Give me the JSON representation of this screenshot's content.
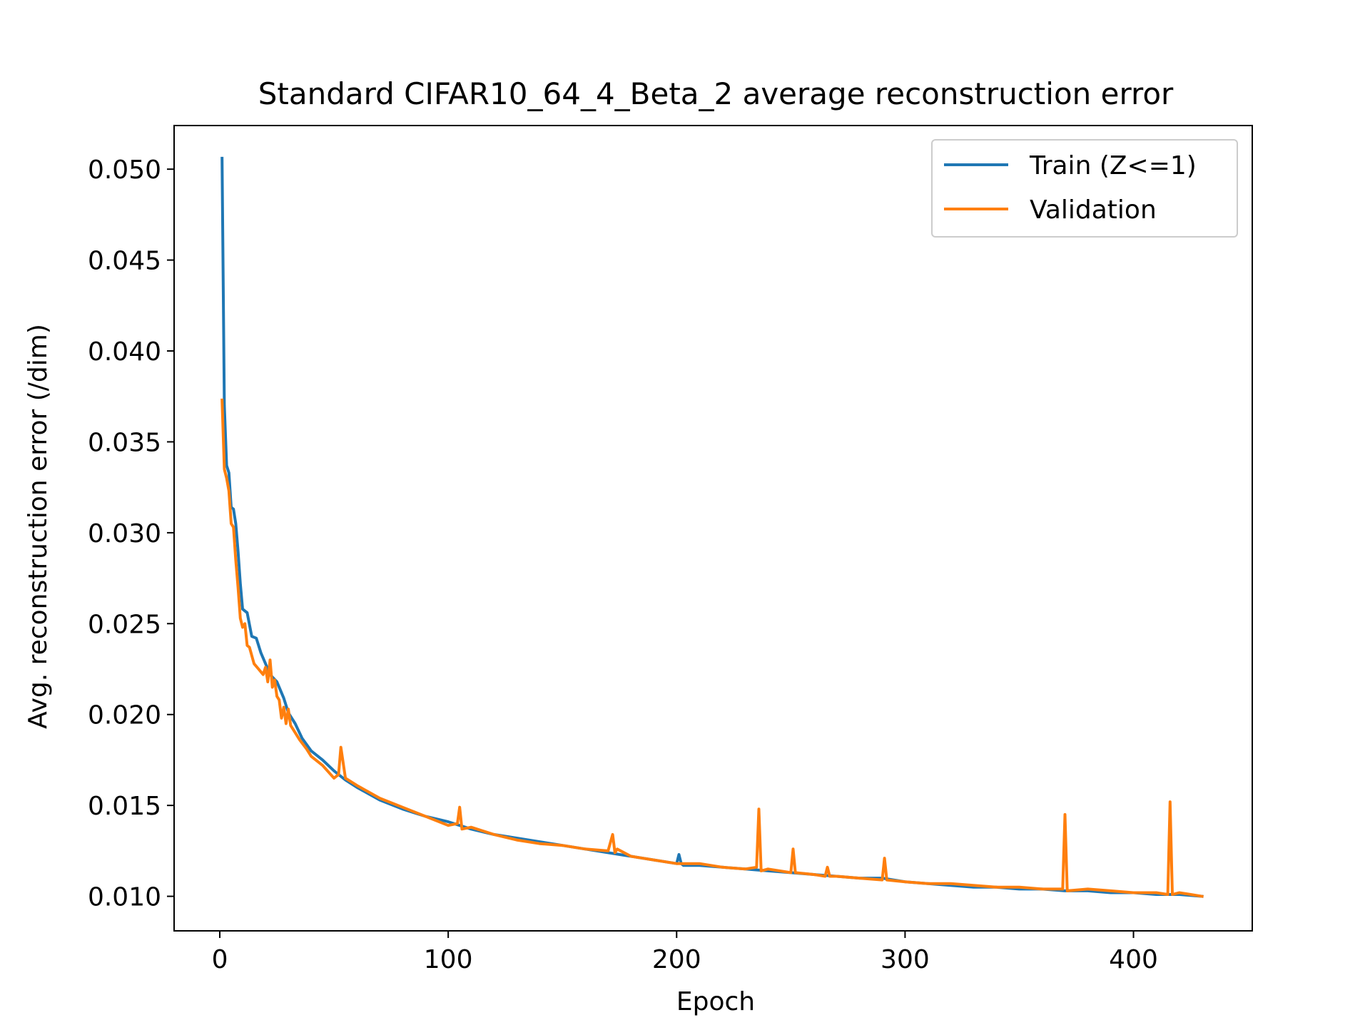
{
  "chart_data": {
    "type": "line",
    "title": "Standard CIFAR10_64_4_Beta_2 average reconstruction error",
    "xlabel": "Epoch",
    "ylabel": "Avg. reconstruction error (/dim)",
    "xlim": [
      -20,
      452
    ],
    "ylim": [
      0.0081,
      0.0524
    ],
    "xticks": [
      0,
      100,
      200,
      300,
      400
    ],
    "xtick_labels": [
      "0",
      "100",
      "200",
      "300",
      "400"
    ],
    "yticks": [
      0.01,
      0.015,
      0.02,
      0.025,
      0.03,
      0.035,
      0.04,
      0.045,
      0.05
    ],
    "ytick_labels": [
      "0.010",
      "0.015",
      "0.020",
      "0.025",
      "0.030",
      "0.035",
      "0.040",
      "0.045",
      "0.050"
    ],
    "grid": false,
    "legend_position": "top-right",
    "series": [
      {
        "name": "Train (Z<=1)",
        "color": "#1f77b4",
        "x": [
          1,
          2,
          3,
          4,
          5,
          6,
          7,
          8,
          9,
          10,
          12,
          14,
          16,
          18,
          20,
          22,
          25,
          28,
          30,
          33,
          36,
          40,
          45,
          50,
          55,
          60,
          70,
          80,
          90,
          100,
          110,
          120,
          130,
          140,
          150,
          160,
          170,
          180,
          190,
          200,
          201,
          202,
          203,
          210,
          220,
          230,
          240,
          250,
          260,
          270,
          280,
          290,
          300,
          310,
          320,
          330,
          340,
          350,
          360,
          370,
          380,
          390,
          400,
          410,
          420,
          430
        ],
        "y": [
          0.0506,
          0.037,
          0.0337,
          0.0333,
          0.0314,
          0.0313,
          0.0305,
          0.029,
          0.0272,
          0.0258,
          0.0256,
          0.0243,
          0.0242,
          0.0234,
          0.0228,
          0.0222,
          0.0218,
          0.0209,
          0.0201,
          0.0195,
          0.0187,
          0.018,
          0.0175,
          0.0169,
          0.0164,
          0.016,
          0.0153,
          0.0148,
          0.0144,
          0.0141,
          0.0137,
          0.0134,
          0.0132,
          0.013,
          0.0128,
          0.0126,
          0.0124,
          0.0122,
          0.012,
          0.0118,
          0.0123,
          0.0118,
          0.0117,
          0.0117,
          0.0116,
          0.0115,
          0.0114,
          0.0113,
          0.0112,
          0.0111,
          0.011,
          0.011,
          0.0108,
          0.0107,
          0.0106,
          0.0105,
          0.0105,
          0.0104,
          0.0104,
          0.0103,
          0.0103,
          0.0102,
          0.0102,
          0.0101,
          0.0101,
          0.01
        ]
      },
      {
        "name": "Validation",
        "color": "#ff7f0e",
        "x": [
          1,
          2,
          3,
          4,
          5,
          6,
          7,
          8,
          9,
          10,
          11,
          12,
          13,
          15,
          17,
          19,
          20,
          21,
          22,
          23,
          24,
          25,
          26,
          27,
          28,
          29,
          30,
          31,
          32,
          35,
          38,
          40,
          45,
          50,
          52,
          53,
          55,
          60,
          70,
          80,
          90,
          100,
          104,
          105,
          106,
          110,
          120,
          130,
          140,
          150,
          160,
          170,
          172,
          173,
          174,
          180,
          190,
          200,
          210,
          220,
          230,
          235,
          236,
          237,
          240,
          250,
          251,
          252,
          260,
          265,
          266,
          267,
          270,
          280,
          290,
          291,
          292,
          300,
          310,
          320,
          330,
          340,
          350,
          360,
          369,
          370,
          371,
          380,
          390,
          400,
          410,
          415,
          416,
          417,
          420,
          425,
          430
        ],
        "y": [
          0.0373,
          0.0335,
          0.033,
          0.0323,
          0.0305,
          0.0303,
          0.0285,
          0.027,
          0.0253,
          0.0248,
          0.025,
          0.0238,
          0.0237,
          0.0228,
          0.0225,
          0.0222,
          0.0226,
          0.0218,
          0.023,
          0.0215,
          0.0219,
          0.021,
          0.0208,
          0.0198,
          0.0204,
          0.0195,
          0.0203,
          0.0194,
          0.0192,
          0.0186,
          0.0181,
          0.0177,
          0.0172,
          0.0165,
          0.0167,
          0.0182,
          0.0165,
          0.0161,
          0.0154,
          0.0149,
          0.0144,
          0.0139,
          0.014,
          0.0149,
          0.0137,
          0.0138,
          0.0134,
          0.0131,
          0.0129,
          0.0128,
          0.0126,
          0.0125,
          0.0134,
          0.0124,
          0.0126,
          0.0122,
          0.012,
          0.0118,
          0.0118,
          0.0116,
          0.0115,
          0.0116,
          0.0148,
          0.0114,
          0.0115,
          0.0113,
          0.0126,
          0.0113,
          0.0112,
          0.0111,
          0.0116,
          0.0111,
          0.0111,
          0.011,
          0.0109,
          0.0121,
          0.0109,
          0.0108,
          0.0107,
          0.0107,
          0.0106,
          0.0105,
          0.0105,
          0.0104,
          0.0104,
          0.0145,
          0.0103,
          0.0104,
          0.0103,
          0.0102,
          0.0102,
          0.0101,
          0.0152,
          0.0101,
          0.0102,
          0.0101,
          0.01
        ]
      }
    ]
  }
}
